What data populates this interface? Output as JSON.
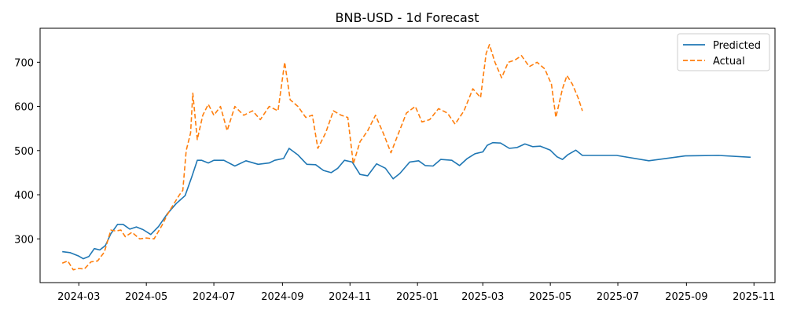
{
  "chart_data": {
    "type": "line",
    "title": "BNB-USD - 1d Forecast",
    "xlabel": "",
    "ylabel": "",
    "xlim": [
      "2024-01-26",
      "2025-11-20"
    ],
    "ylim": [
      201,
      777
    ],
    "x_ticks": [
      "2024-03",
      "2024-05",
      "2024-07",
      "2024-09",
      "2024-11",
      "2025-01",
      "2025-03",
      "2025-05",
      "2025-07",
      "2025-09",
      "2025-11"
    ],
    "y_ticks": [
      300,
      400,
      500,
      600,
      700
    ],
    "grid": false,
    "legend": "upper-right",
    "colors": {
      "Predicted": "#1f77b4",
      "Actual": "#ff7f0e"
    },
    "series": [
      {
        "name": "Predicted",
        "style": "solid",
        "points": [
          [
            "2024-02-15",
            271
          ],
          [
            "2024-02-22",
            269
          ],
          [
            "2024-03-01",
            261
          ],
          [
            "2024-03-05",
            255
          ],
          [
            "2024-03-10",
            260
          ],
          [
            "2024-03-15",
            278
          ],
          [
            "2024-03-20",
            275
          ],
          [
            "2024-03-25",
            285
          ],
          [
            "2024-03-30",
            312
          ],
          [
            "2024-04-05",
            333
          ],
          [
            "2024-04-10",
            333
          ],
          [
            "2024-04-16",
            322
          ],
          [
            "2024-04-22",
            327
          ],
          [
            "2024-04-28",
            321
          ],
          [
            "2024-05-05",
            310
          ],
          [
            "2024-05-12",
            328
          ],
          [
            "2024-05-20",
            357
          ],
          [
            "2024-05-28",
            380
          ],
          [
            "2024-06-05",
            398
          ],
          [
            "2024-06-11",
            440
          ],
          [
            "2024-06-16",
            478
          ],
          [
            "2024-06-20",
            478
          ],
          [
            "2024-06-26",
            472
          ],
          [
            "2024-07-01",
            478
          ],
          [
            "2024-07-10",
            478
          ],
          [
            "2024-07-20",
            465
          ],
          [
            "2024-07-30",
            477
          ],
          [
            "2024-08-10",
            469
          ],
          [
            "2024-08-20",
            472
          ],
          [
            "2024-08-25",
            478
          ],
          [
            "2024-09-02",
            482
          ],
          [
            "2024-09-07",
            505
          ],
          [
            "2024-09-15",
            490
          ],
          [
            "2024-09-23",
            469
          ],
          [
            "2024-10-01",
            468
          ],
          [
            "2024-10-08",
            455
          ],
          [
            "2024-10-15",
            450
          ],
          [
            "2024-10-21",
            460
          ],
          [
            "2024-10-27",
            478
          ],
          [
            "2024-11-03",
            474
          ],
          [
            "2024-11-10",
            446
          ],
          [
            "2024-11-17",
            443
          ],
          [
            "2024-11-25",
            470
          ],
          [
            "2024-12-03",
            460
          ],
          [
            "2024-12-10",
            436
          ],
          [
            "2024-12-16",
            448
          ],
          [
            "2024-12-25",
            474
          ],
          [
            "2025-01-02",
            477
          ],
          [
            "2025-01-08",
            466
          ],
          [
            "2025-01-15",
            465
          ],
          [
            "2025-01-22",
            480
          ],
          [
            "2025-02-01",
            478
          ],
          [
            "2025-02-08",
            466
          ],
          [
            "2025-02-15",
            482
          ],
          [
            "2025-02-22",
            493
          ],
          [
            "2025-03-01",
            497
          ],
          [
            "2025-03-05",
            512
          ],
          [
            "2025-03-10",
            518
          ],
          [
            "2025-03-17",
            517
          ],
          [
            "2025-03-25",
            505
          ],
          [
            "2025-04-01",
            507
          ],
          [
            "2025-04-08",
            515
          ],
          [
            "2025-04-15",
            509
          ],
          [
            "2025-04-22",
            510
          ],
          [
            "2025-05-01",
            501
          ],
          [
            "2025-05-07",
            486
          ],
          [
            "2025-05-12",
            480
          ],
          [
            "2025-05-17",
            491
          ],
          [
            "2025-05-24",
            501
          ],
          [
            "2025-05-30",
            489
          ],
          [
            "2025-06-05",
            489
          ],
          [
            "2025-06-30",
            489
          ],
          [
            "2025-07-29",
            477
          ],
          [
            "2025-08-31",
            488
          ],
          [
            "2025-09-30",
            489
          ],
          [
            "2025-10-29",
            485
          ]
        ]
      },
      {
        "name": "Actual",
        "style": "dashed",
        "points": [
          [
            "2024-02-15",
            245
          ],
          [
            "2024-02-20",
            250
          ],
          [
            "2024-02-25",
            230
          ],
          [
            "2024-03-01",
            233
          ],
          [
            "2024-03-06",
            232
          ],
          [
            "2024-03-12",
            248
          ],
          [
            "2024-03-18",
            250
          ],
          [
            "2024-03-24",
            270
          ],
          [
            "2024-03-30",
            320
          ],
          [
            "2024-04-03",
            318
          ],
          [
            "2024-04-08",
            320
          ],
          [
            "2024-04-12",
            305
          ],
          [
            "2024-04-18",
            315
          ],
          [
            "2024-04-25",
            300
          ],
          [
            "2024-05-01",
            302
          ],
          [
            "2024-05-08",
            300
          ],
          [
            "2024-05-15",
            330
          ],
          [
            "2024-05-20",
            355
          ],
          [
            "2024-05-26",
            380
          ],
          [
            "2024-05-31",
            400
          ],
          [
            "2024-06-03",
            410
          ],
          [
            "2024-06-06",
            500
          ],
          [
            "2024-06-10",
            540
          ],
          [
            "2024-06-12",
            630
          ],
          [
            "2024-06-16",
            525
          ],
          [
            "2024-06-21",
            580
          ],
          [
            "2024-06-26",
            605
          ],
          [
            "2024-07-01",
            580
          ],
          [
            "2024-07-07",
            600
          ],
          [
            "2024-07-13",
            545
          ],
          [
            "2024-07-20",
            600
          ],
          [
            "2024-07-28",
            580
          ],
          [
            "2024-08-05",
            590
          ],
          [
            "2024-08-12",
            570
          ],
          [
            "2024-08-20",
            600
          ],
          [
            "2024-08-28",
            590
          ],
          [
            "2024-09-03",
            700
          ],
          [
            "2024-09-08",
            615
          ],
          [
            "2024-09-15",
            600
          ],
          [
            "2024-09-22",
            575
          ],
          [
            "2024-09-28",
            580
          ],
          [
            "2024-10-03",
            505
          ],
          [
            "2024-10-10",
            540
          ],
          [
            "2024-10-17",
            590
          ],
          [
            "2024-10-24",
            580
          ],
          [
            "2024-10-30",
            575
          ],
          [
            "2024-11-04",
            470
          ],
          [
            "2024-11-10",
            520
          ],
          [
            "2024-11-17",
            545
          ],
          [
            "2024-11-24",
            580
          ],
          [
            "2024-12-01",
            540
          ],
          [
            "2024-12-08",
            495
          ],
          [
            "2024-12-15",
            540
          ],
          [
            "2024-12-22",
            585
          ],
          [
            "2024-12-30",
            600
          ],
          [
            "2025-01-05",
            565
          ],
          [
            "2025-01-12",
            570
          ],
          [
            "2025-01-20",
            595
          ],
          [
            "2025-01-28",
            585
          ],
          [
            "2025-02-04",
            560
          ],
          [
            "2025-02-12",
            590
          ],
          [
            "2025-02-20",
            640
          ],
          [
            "2025-02-27",
            620
          ],
          [
            "2025-03-04",
            720
          ],
          [
            "2025-03-07",
            740
          ],
          [
            "2025-03-12",
            700
          ],
          [
            "2025-03-18",
            665
          ],
          [
            "2025-03-24",
            700
          ],
          [
            "2025-03-30",
            705
          ],
          [
            "2025-04-05",
            715
          ],
          [
            "2025-04-12",
            690
          ],
          [
            "2025-04-19",
            700
          ],
          [
            "2025-04-26",
            685
          ],
          [
            "2025-05-02",
            650
          ],
          [
            "2025-05-06",
            575
          ],
          [
            "2025-05-12",
            640
          ],
          [
            "2025-05-16",
            670
          ],
          [
            "2025-05-21",
            650
          ],
          [
            "2025-05-26",
            620
          ],
          [
            "2025-05-30",
            590
          ]
        ]
      }
    ]
  }
}
